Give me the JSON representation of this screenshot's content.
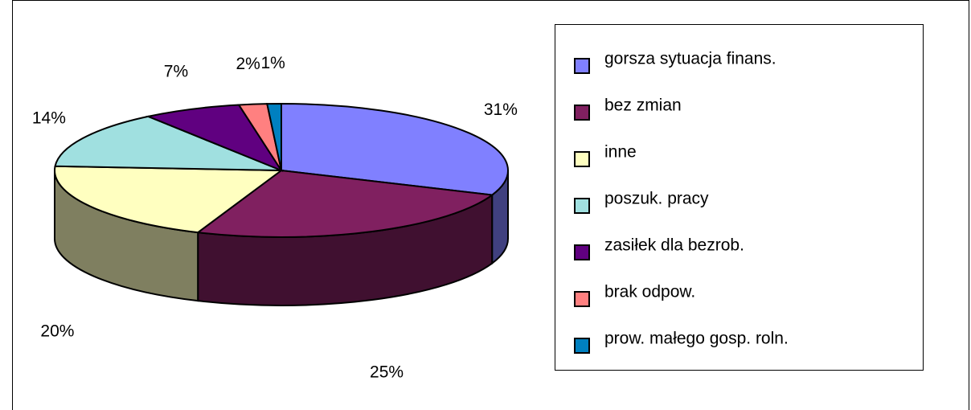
{
  "chart_data": {
    "type": "pie3d",
    "categories": [
      "gorsza sytuacja finans.",
      "bez zmian",
      "inne",
      "poszuk. pracy",
      "zasiłek dla bezrob.",
      "brak odpow.",
      "prow. małego gosp. roln."
    ],
    "values": [
      31,
      25,
      20,
      14,
      7,
      2,
      1
    ],
    "value_labels": [
      "31%",
      "25%",
      "20%",
      "14%",
      "7%",
      "2%",
      "1%"
    ],
    "colors": [
      "#8080ff",
      "#802060",
      "#ffffc0",
      "#a0e0e0",
      "#600080",
      "#ff8080",
      "#0080c0"
    ],
    "legend": "right"
  }
}
